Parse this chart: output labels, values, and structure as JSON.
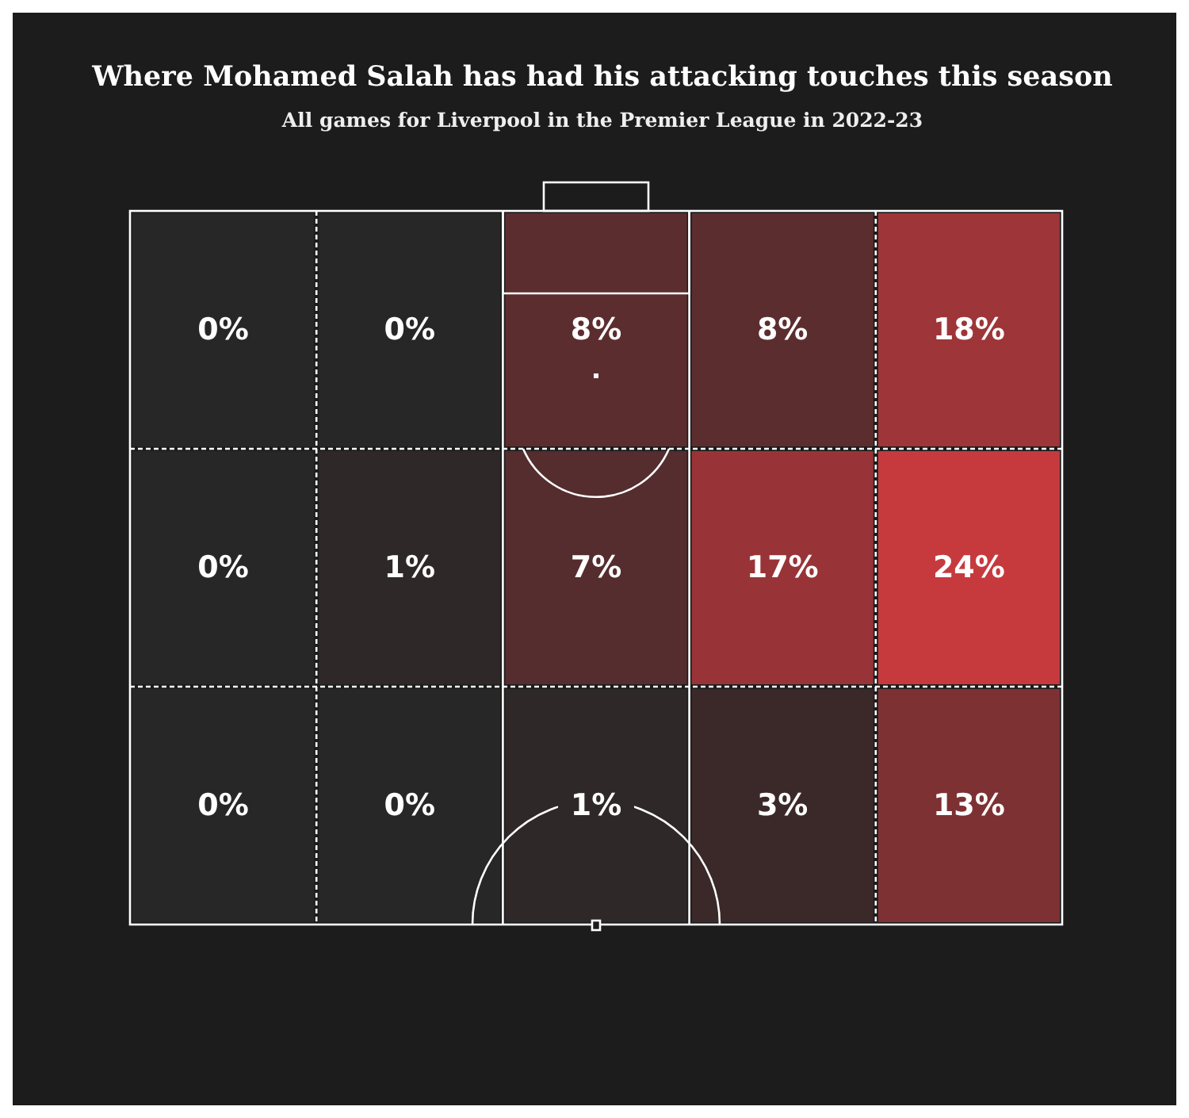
{
  "chart_data": {
    "type": "heatmap",
    "title": "Where Mohamed Salah has had his attacking touches this season",
    "subtitle": "All games for Liverpool in the Premier League in 2022-23",
    "categories": [
      null,
      null,
      null,
      null,
      null
    ],
    "y_categories": [
      null,
      null,
      null
    ],
    "cells": [
      [
        0,
        0,
        8,
        8,
        18
      ],
      [
        0,
        1,
        7,
        17,
        24
      ],
      [
        0,
        0,
        1,
        3,
        13
      ]
    ],
    "cell_labels": [
      [
        "0%",
        "0%",
        "8%",
        "8%",
        "18%"
      ],
      [
        "0%",
        "1%",
        "7%",
        "17%",
        "24%"
      ],
      [
        "0%",
        "0%",
        "1%",
        "3%",
        "13%"
      ]
    ]
  }
}
